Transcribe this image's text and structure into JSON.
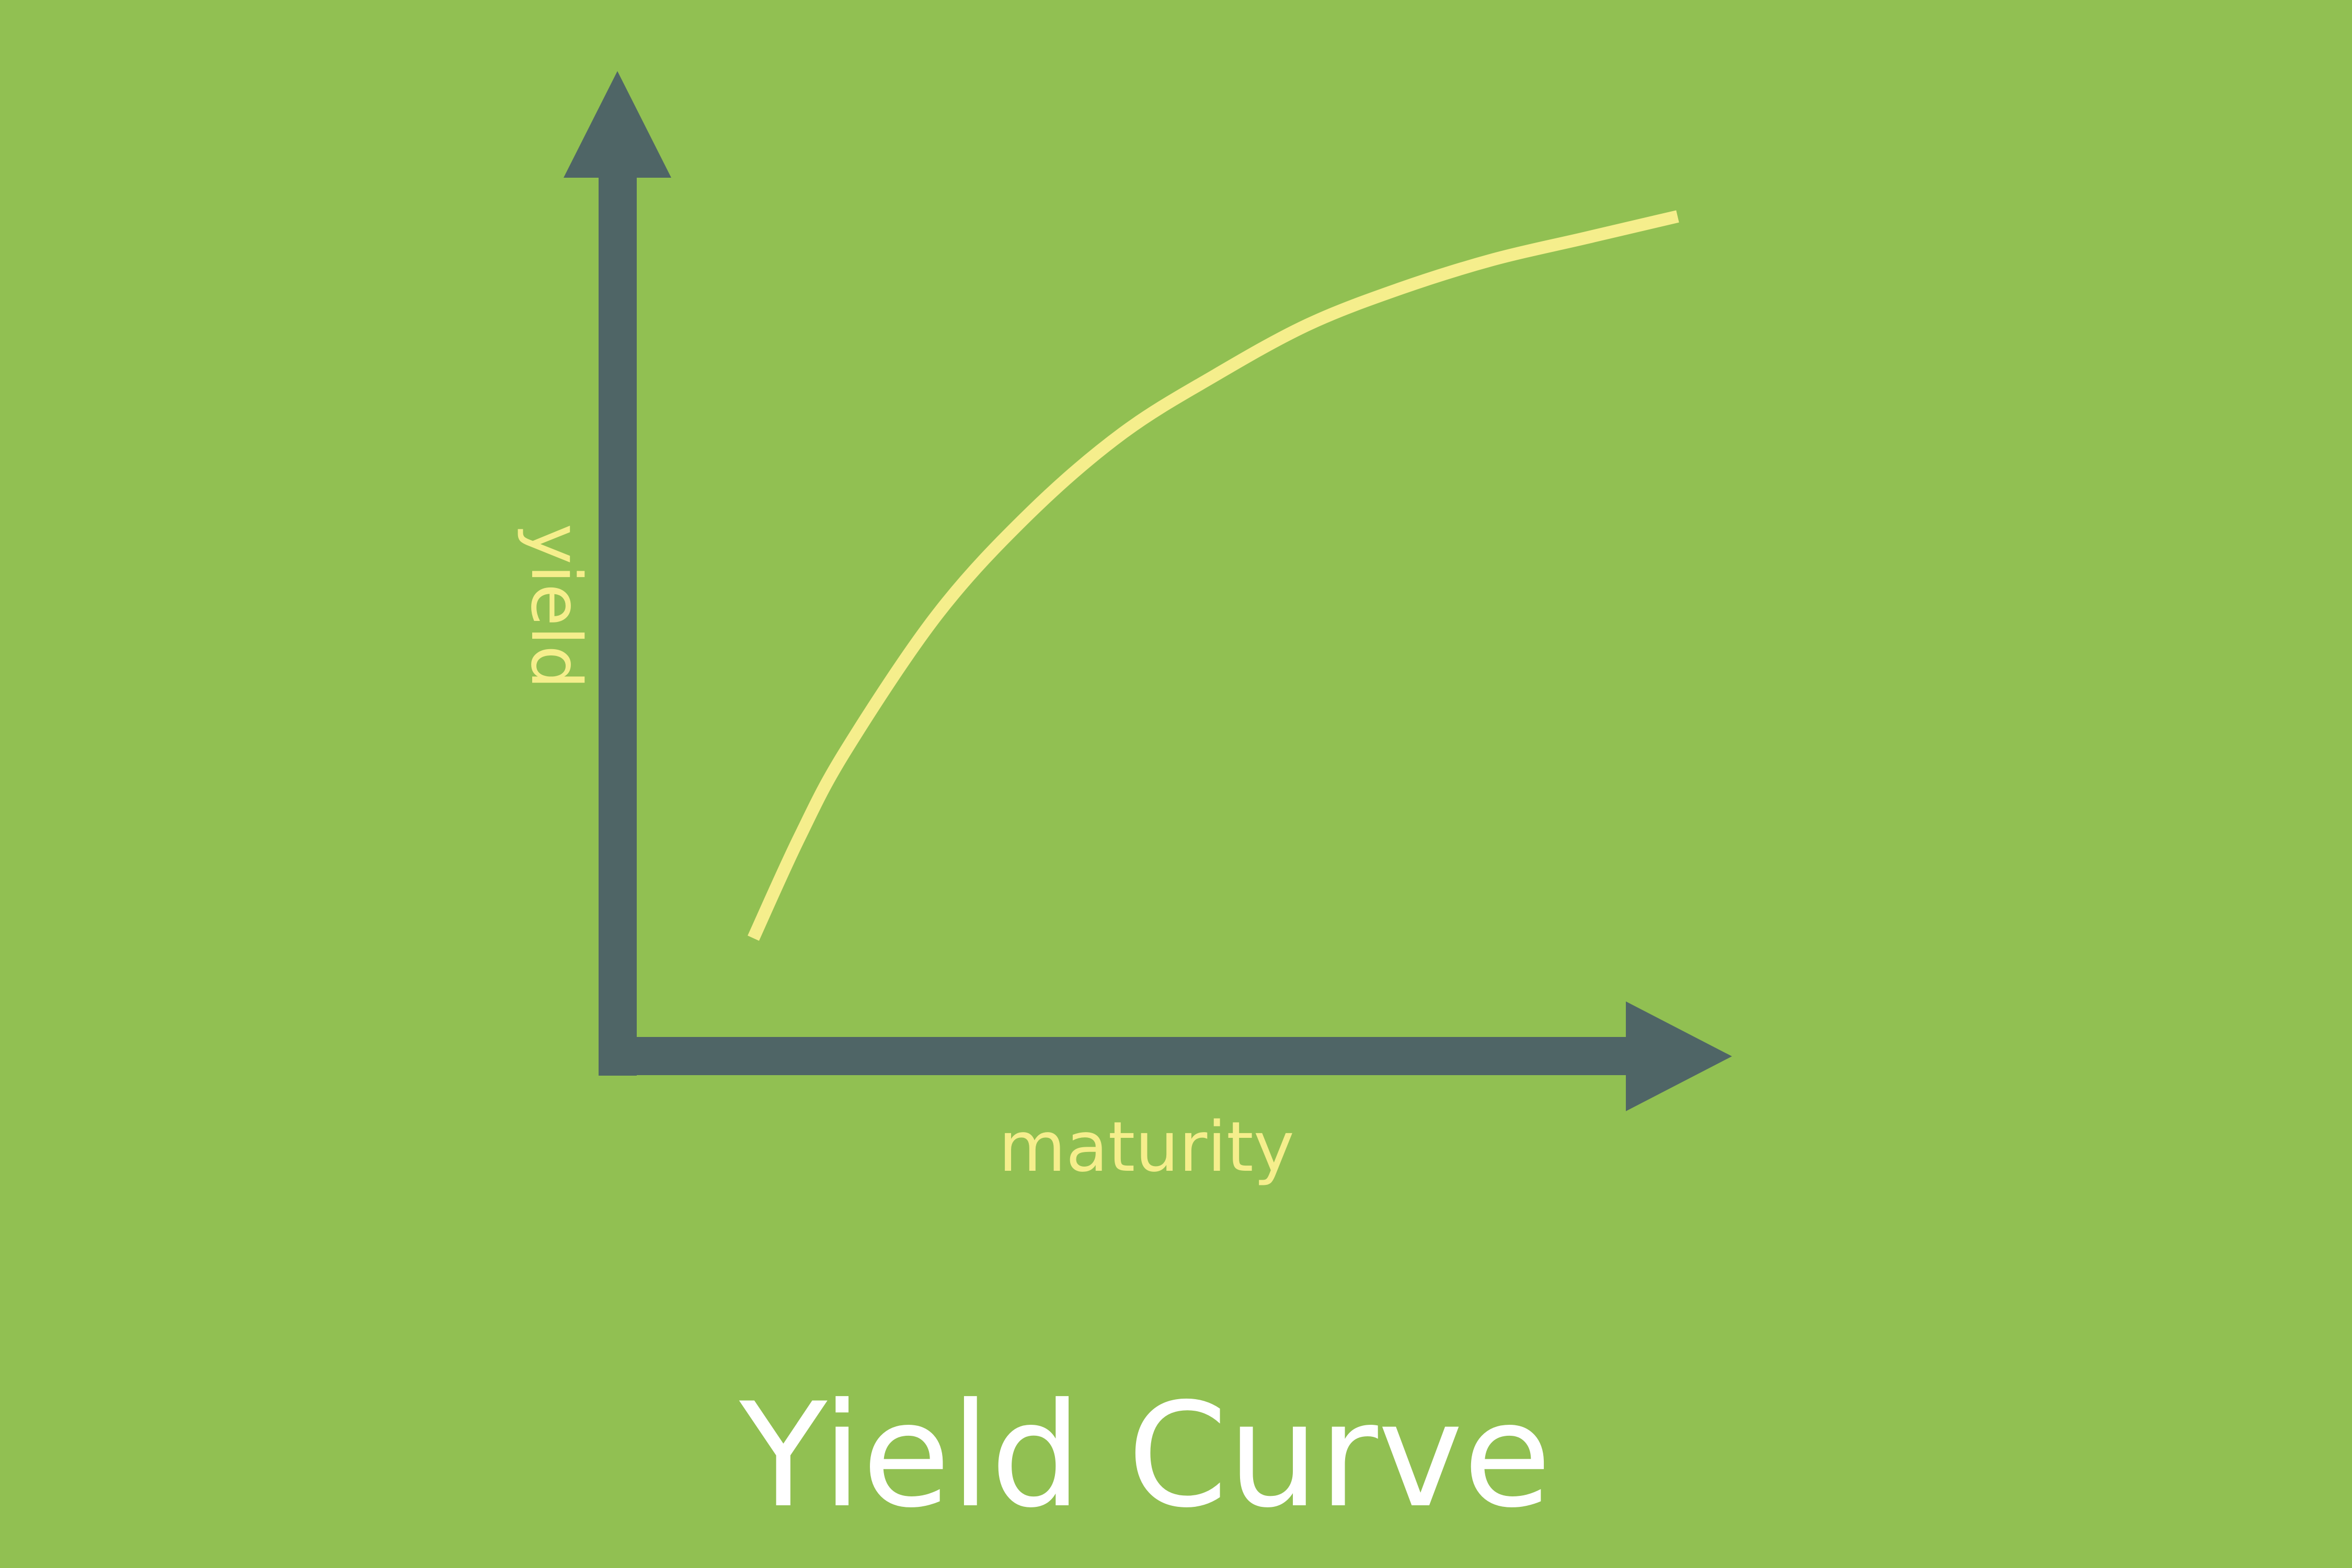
{
  "chart_data": {
    "type": "line",
    "title": "Yield Curve",
    "xlabel": "maturity",
    "ylabel": "yield",
    "ticks": "none",
    "grid": false,
    "legend": "none",
    "series": [
      {
        "shape": "concave increasing",
        "x": [
          0.0,
          0.05,
          0.1,
          0.2,
          0.3,
          0.4,
          0.5,
          0.6,
          0.7,
          0.8,
          0.9,
          1.0
        ],
        "y": [
          0.0,
          0.14,
          0.26,
          0.45,
          0.59,
          0.7,
          0.78,
          0.85,
          0.9,
          0.94,
          0.97,
          1.0
        ]
      }
    ],
    "xlim": [
      0,
      1
    ],
    "ylim": [
      0,
      1
    ]
  },
  "colors": {
    "background": "#91c052",
    "axis": "#4f6566",
    "curve": "#f5ee8c",
    "axis_label": "#f5ee8c",
    "title": "#ffffff"
  }
}
